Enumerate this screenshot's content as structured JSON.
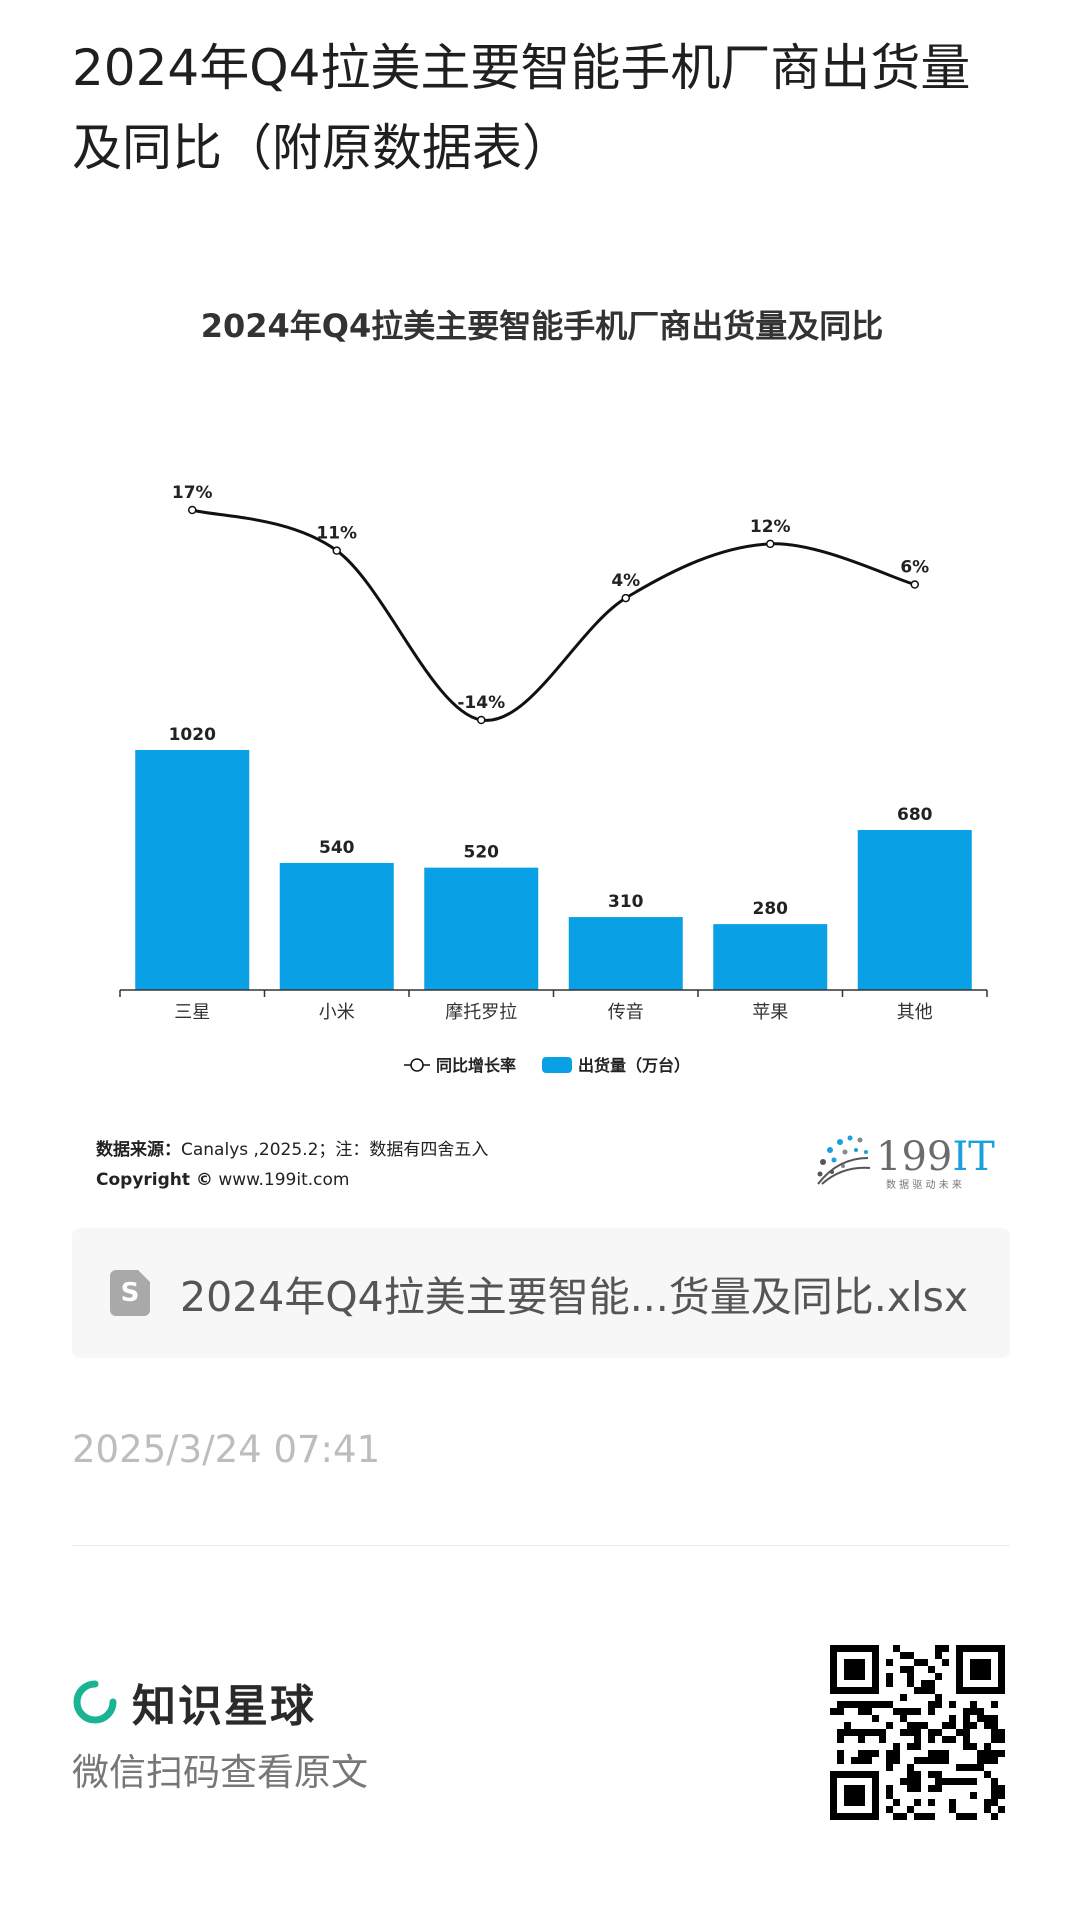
{
  "post": {
    "title": "2024年Q4拉美主要智能手机厂商出货量及同比（附原数据表）"
  },
  "chart_data": {
    "type": "bar",
    "title": "2024年Q4拉美主要智能手机厂商出货量及同比",
    "categories": [
      "三星",
      "小米",
      "摩托罗拉",
      "传音",
      "苹果",
      "其他"
    ],
    "series": [
      {
        "name": "出货量（万台）",
        "type": "bar",
        "values": [
          1020,
          540,
          520,
          310,
          280,
          680
        ],
        "color": "#0aa0e6"
      },
      {
        "name": "同比增长率",
        "type": "line",
        "values": [
          17,
          11,
          -14,
          4,
          12,
          6
        ],
        "unit": "%",
        "color": "#111111"
      }
    ],
    "data_labels": {
      "bars": [
        "1020",
        "540",
        "520",
        "310",
        "280",
        "680"
      ],
      "line": [
        "17%",
        "11%",
        "-14%",
        "4%",
        "12%",
        "6%"
      ]
    },
    "legend": [
      "同比增长率",
      "出货量（万台）"
    ],
    "legend_position": "bottom",
    "grid": false
  },
  "source": {
    "label": "数据来源：",
    "text": "Canalys ,2025.2；注：数据有四舍五入",
    "copyright_label": "Copyright ©",
    "copyright_text": " www.199it.com"
  },
  "logo": {
    "name": "199IT",
    "tagline": "数 据 驱 动 未 来",
    "accent": "#1aa0dc"
  },
  "attachment": {
    "icon": "spreadsheet-file-icon",
    "icon_letter": "S",
    "file_name": "2024年Q4拉美主要智能...货量及同比.xlsx"
  },
  "timestamp": "2025/3/24 07:41",
  "footer": {
    "brand_name": "知识星球",
    "brand_color": "#1ab394",
    "scan_hint": "微信扫码查看原文"
  }
}
